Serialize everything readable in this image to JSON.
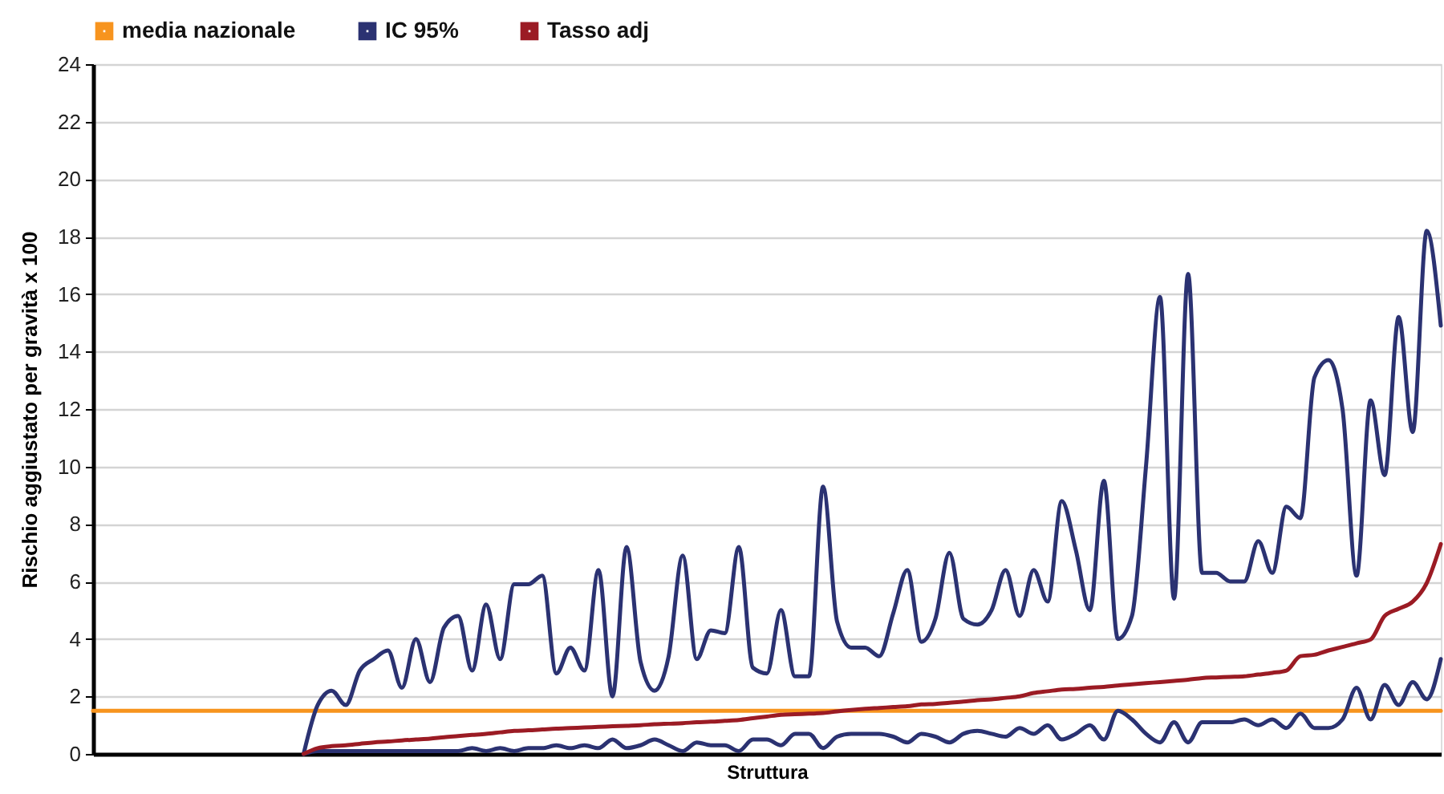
{
  "chart_data": {
    "type": "line",
    "xlabel": "Struttura",
    "ylabel": "Rischio aggiustato per gravità x 100",
    "categories": [
      null,
      null,
      null,
      null,
      null,
      null,
      null,
      null,
      null,
      null,
      null,
      null,
      null,
      null,
      null,
      null,
      null,
      null,
      null,
      null,
      null,
      null,
      null,
      null,
      null,
      null,
      null,
      null,
      null,
      null,
      null,
      null,
      null,
      null,
      null,
      null,
      null,
      null,
      null,
      null,
      null,
      null,
      null,
      null,
      null,
      null,
      null,
      null,
      null,
      null,
      null,
      null,
      null,
      null,
      null,
      null,
      null,
      null,
      null,
      null,
      null,
      null,
      null,
      null,
      null,
      null,
      null,
      null,
      null,
      null,
      null,
      null,
      null,
      null,
      null,
      null,
      null,
      null,
      null,
      null,
      null,
      null,
      null,
      null,
      null,
      null,
      null,
      null,
      null,
      null,
      null,
      null,
      null,
      null,
      null,
      null,
      null
    ],
    "series": [
      {
        "name": "media nazionale",
        "color": "#f7941e",
        "values": [
          1.5,
          1.5,
          1.5,
          1.5,
          1.5,
          1.5,
          1.5,
          1.5,
          1.5,
          1.5,
          1.5,
          1.5,
          1.5,
          1.5,
          1.5,
          1.5,
          1.5,
          1.5,
          1.5,
          1.5,
          1.5,
          1.5,
          1.5,
          1.5,
          1.5,
          1.5,
          1.5,
          1.5,
          1.5,
          1.5,
          1.5,
          1.5,
          1.5,
          1.5,
          1.5,
          1.5,
          1.5,
          1.5,
          1.5,
          1.5,
          1.5,
          1.5,
          1.5,
          1.5,
          1.5,
          1.5,
          1.5,
          1.5,
          1.5,
          1.5,
          1.5,
          1.5,
          1.5,
          1.5,
          1.5,
          1.5,
          1.5,
          1.5,
          1.5,
          1.5,
          1.5,
          1.5,
          1.5,
          1.5,
          1.5,
          1.5,
          1.5,
          1.5,
          1.5,
          1.5,
          1.5,
          1.5,
          1.5,
          1.5,
          1.5,
          1.5,
          1.5,
          1.5,
          1.5,
          1.5,
          1.5,
          1.5,
          1.5,
          1.5,
          1.5,
          1.5,
          1.5,
          1.5,
          1.5,
          1.5,
          1.5,
          1.5,
          1.5,
          1.5,
          1.5,
          1.5,
          1.5
        ]
      },
      {
        "name": "IC 95%",
        "color": "#2b3272",
        "values": [
          null,
          null,
          null,
          null,
          null,
          null,
          null,
          null,
          null,
          null,
          null,
          null,
          null,
          null,
          null,
          0,
          1.7,
          2.2,
          1.7,
          2.9,
          3.3,
          3.6,
          2.3,
          4.0,
          2.5,
          4.4,
          4.8,
          2.9,
          5.2,
          3.3,
          5.9,
          5.9,
          6.2,
          2.8,
          3.7,
          2.9,
          6.4,
          2.0,
          7.2,
          3.2,
          2.2,
          3.4,
          6.9,
          3.3,
          4.3,
          4.2,
          7.2,
          3.0,
          2.8,
          5.0,
          2.7,
          2.7,
          9.3,
          4.6,
          3.7,
          3.7,
          3.4,
          4.9,
          6.4,
          3.9,
          4.7,
          7.0,
          4.7,
          4.5,
          5.0,
          6.4,
          4.8,
          6.4,
          5.3,
          8.8,
          7.1,
          5.0,
          9.5,
          4.0,
          4.8,
          10.0,
          15.9,
          5.4,
          16.7,
          6.3,
          6.3,
          6.0,
          6.0,
          7.4,
          6.3,
          8.6,
          8.2,
          13.1,
          13.7,
          12.0,
          6.2,
          12.3,
          9.7,
          15.2,
          11.2,
          18.2,
          14.9
        ]
      },
      {
        "color": "#2b3272",
        "values": [
          null,
          null,
          null,
          null,
          null,
          null,
          null,
          null,
          null,
          null,
          null,
          null,
          null,
          null,
          null,
          0,
          0.1,
          0.1,
          0.1,
          0.1,
          0.1,
          0.1,
          0.1,
          0.1,
          0.1,
          0.1,
          0.1,
          0.2,
          0.1,
          0.2,
          0.1,
          0.2,
          0.2,
          0.3,
          0.2,
          0.3,
          0.2,
          0.5,
          0.2,
          0.3,
          0.5,
          0.3,
          0.1,
          0.4,
          0.3,
          0.3,
          0.1,
          0.5,
          0.5,
          0.3,
          0.7,
          0.7,
          0.2,
          0.6,
          0.7,
          0.7,
          0.7,
          0.6,
          0.4,
          0.7,
          0.6,
          0.4,
          0.7,
          0.8,
          0.7,
          0.6,
          0.9,
          0.7,
          1.0,
          0.5,
          0.7,
          1.0,
          0.5,
          1.5,
          1.2,
          0.7,
          0.4,
          1.1,
          0.4,
          1.1,
          1.1,
          1.1,
          1.2,
          1.0,
          1.2,
          0.9,
          1.4,
          0.9,
          0.9,
          1.2,
          2.3,
          1.2,
          2.4,
          1.7,
          2.5,
          1.9,
          3.3
        ]
      },
      {
        "name": "Tasso adj",
        "color": "#9b1b24",
        "values": [
          null,
          null,
          null,
          null,
          null,
          null,
          null,
          null,
          null,
          null,
          null,
          null,
          null,
          null,
          null,
          0,
          0.2,
          0.27,
          0.3,
          0.35,
          0.4,
          0.43,
          0.47,
          0.5,
          0.53,
          0.58,
          0.62,
          0.66,
          0.7,
          0.75,
          0.8,
          0.82,
          0.85,
          0.88,
          0.9,
          0.92,
          0.94,
          0.96,
          0.98,
          1.0,
          1.03,
          1.05,
          1.07,
          1.1,
          1.12,
          1.15,
          1.18,
          1.24,
          1.3,
          1.36,
          1.38,
          1.4,
          1.42,
          1.48,
          1.53,
          1.57,
          1.6,
          1.63,
          1.66,
          1.72,
          1.74,
          1.78,
          1.82,
          1.87,
          1.9,
          1.95,
          2.0,
          2.12,
          2.18,
          2.24,
          2.26,
          2.3,
          2.33,
          2.38,
          2.42,
          2.46,
          2.5,
          2.54,
          2.58,
          2.64,
          2.66,
          2.68,
          2.7,
          2.76,
          2.82,
          2.9,
          3.4,
          3.45,
          3.6,
          3.72,
          3.85,
          3.98,
          4.8,
          5.05,
          5.3,
          5.95,
          7.3
        ]
      }
    ],
    "ylim": [
      0,
      24
    ],
    "yticks": [
      0,
      2,
      4,
      6,
      8,
      10,
      12,
      14,
      16,
      18,
      20,
      22,
      24
    ],
    "grid": "y",
    "legend": "top",
    "tick_labels": "y"
  }
}
